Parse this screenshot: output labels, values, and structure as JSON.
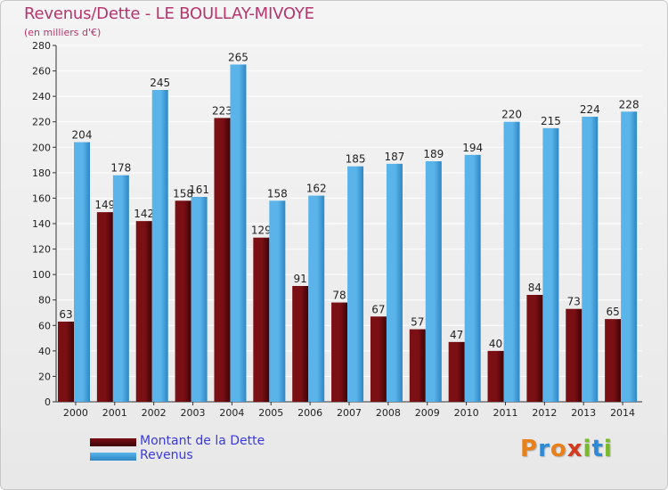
{
  "title": "Revenus/Dette - LE BOULLAY-MIVOYE",
  "subtitle": "(en milliers d'€)",
  "logo_text": "Proxiti",
  "colors": {
    "title": "#b5356d",
    "debt": "#7a0f14",
    "debt_dark": "#3d0407",
    "revenue": "#5ab4ea",
    "revenue_dark": "#2e86c4",
    "grid": "#ffffff",
    "legend_text": "#3a3ae0"
  },
  "chart_data": {
    "type": "bar",
    "categories": [
      "2000",
      "2001",
      "2002",
      "2003",
      "2004",
      "2005",
      "2006",
      "2007",
      "2008",
      "2009",
      "2010",
      "2011",
      "2012",
      "2013",
      "2014"
    ],
    "series": [
      {
        "name": "Montant de la Dette",
        "values": [
          63,
          149,
          142,
          158,
          223,
          129,
          91,
          78,
          67,
          57,
          47,
          40,
          84,
          73,
          65
        ]
      },
      {
        "name": "Revenus",
        "values": [
          204,
          178,
          245,
          161,
          265,
          158,
          162,
          185,
          187,
          189,
          194,
          220,
          215,
          224,
          228
        ]
      }
    ],
    "ylim": [
      0,
      280
    ],
    "yticks": [
      0,
      20,
      40,
      60,
      80,
      100,
      120,
      140,
      160,
      180,
      200,
      220,
      240,
      260,
      280
    ],
    "grid": true,
    "legend": "bottom-left"
  }
}
